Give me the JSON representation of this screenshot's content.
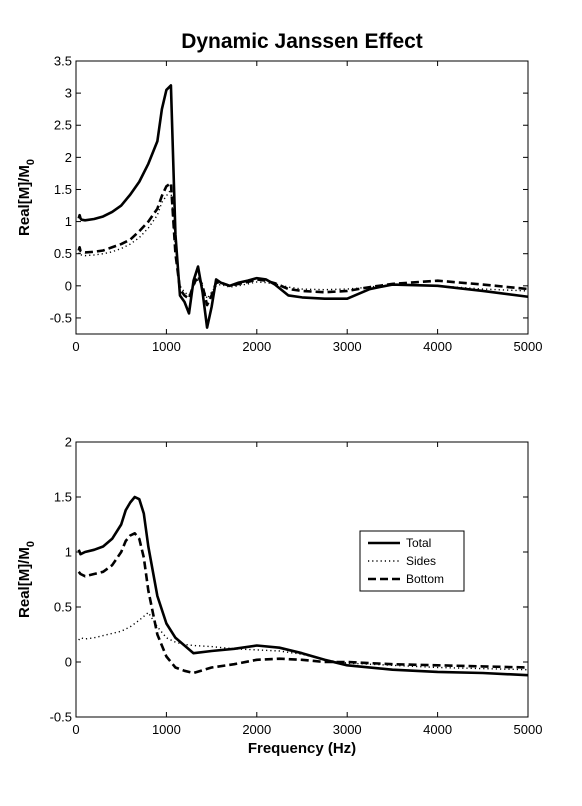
{
  "figure": {
    "title": "Dynamic Janssen Effect"
  },
  "chart_data": [
    {
      "type": "line",
      "ylabel": "Real[M]/M",
      "ylabel_subscript": "0",
      "xlabel": "",
      "xlim": [
        0,
        5000
      ],
      "ylim": [
        -0.75,
        3.5
      ],
      "xticks": [
        0,
        1000,
        2000,
        3000,
        4000,
        5000
      ],
      "yticks": [
        -0.5,
        0,
        0.5,
        1,
        1.5,
        2,
        2.5,
        3,
        3.5
      ],
      "grid": false,
      "legend": null,
      "series": [
        {
          "name": "Total",
          "style": "solid",
          "x": [
            30,
            40,
            50,
            60,
            100,
            200,
            300,
            400,
            500,
            600,
            700,
            800,
            900,
            950,
            1000,
            1050,
            1100,
            1150,
            1200,
            1250,
            1300,
            1350,
            1400,
            1450,
            1500,
            1550,
            1600,
            1700,
            1800,
            1900,
            2000,
            2100,
            2200,
            2350,
            2500,
            2750,
            3000,
            3250,
            3500,
            4000,
            4500,
            5000
          ],
          "y": [
            1.05,
            1.1,
            1.05,
            1.03,
            1.02,
            1.04,
            1.08,
            1.15,
            1.25,
            1.42,
            1.62,
            1.9,
            2.25,
            2.75,
            3.05,
            3.12,
            0.8,
            -0.15,
            -0.25,
            -0.43,
            0.08,
            0.3,
            -0.1,
            -0.65,
            -0.33,
            0.1,
            0.05,
            0.0,
            0.05,
            0.08,
            0.12,
            0.1,
            0.02,
            -0.15,
            -0.18,
            -0.2,
            -0.2,
            -0.05,
            0.02,
            0.0,
            -0.08,
            -0.17
          ]
        },
        {
          "name": "Sides",
          "style": "dotted",
          "x": [
            30,
            40,
            50,
            60,
            100,
            200,
            300,
            400,
            500,
            600,
            700,
            800,
            900,
            950,
            1000,
            1050,
            1100,
            1150,
            1200,
            1250,
            1300,
            1350,
            1400,
            1450,
            1500,
            1550,
            1600,
            1700,
            1800,
            1900,
            2000,
            2100,
            2200,
            2350,
            2500,
            2750,
            3000,
            3250,
            3500,
            4000,
            4500,
            5000
          ],
          "y": [
            0.5,
            0.52,
            0.49,
            0.48,
            0.47,
            0.48,
            0.5,
            0.53,
            0.58,
            0.65,
            0.75,
            0.9,
            1.1,
            1.3,
            1.4,
            1.5,
            0.6,
            0.0,
            -0.1,
            -0.15,
            0.0,
            0.1,
            0.0,
            -0.2,
            -0.1,
            0.0,
            0.02,
            -0.02,
            0.0,
            0.03,
            0.06,
            0.05,
            0.03,
            -0.02,
            -0.05,
            -0.06,
            -0.05,
            -0.02,
            0.02,
            0.0,
            -0.05,
            -0.08
          ]
        },
        {
          "name": "Bottom",
          "style": "dashed",
          "x": [
            30,
            40,
            50,
            60,
            100,
            200,
            300,
            400,
            500,
            600,
            700,
            800,
            900,
            950,
            1000,
            1050,
            1100,
            1150,
            1200,
            1250,
            1300,
            1350,
            1400,
            1450,
            1500,
            1550,
            1600,
            1700,
            1800,
            1900,
            2000,
            2100,
            2200,
            2350,
            2500,
            2750,
            3000,
            3250,
            3500,
            4000,
            4500,
            5000
          ],
          "y": [
            0.55,
            0.6,
            0.54,
            0.53,
            0.52,
            0.53,
            0.55,
            0.6,
            0.65,
            0.72,
            0.85,
            1.0,
            1.2,
            1.4,
            1.55,
            1.6,
            0.5,
            -0.05,
            -0.15,
            -0.2,
            0.02,
            0.15,
            0.0,
            -0.3,
            -0.15,
            0.05,
            0.05,
            0.0,
            0.03,
            0.06,
            0.1,
            0.08,
            0.04,
            -0.05,
            -0.08,
            -0.1,
            -0.08,
            -0.02,
            0.03,
            0.08,
            0.02,
            -0.05
          ]
        }
      ]
    },
    {
      "type": "line",
      "ylabel": "Real[M]/M",
      "ylabel_subscript": "0",
      "xlabel": "Frequency (Hz)",
      "xlim": [
        0,
        5000
      ],
      "ylim": [
        -0.5,
        2
      ],
      "xticks": [
        0,
        1000,
        2000,
        3000,
        4000,
        5000
      ],
      "yticks": [
        -0.5,
        0,
        0.5,
        1,
        1.5,
        2
      ],
      "grid": false,
      "legend": "right",
      "series": [
        {
          "name": "Total",
          "style": "solid",
          "x": [
            30,
            50,
            100,
            200,
            300,
            400,
            500,
            550,
            600,
            650,
            700,
            750,
            800,
            900,
            1000,
            1100,
            1200,
            1300,
            1500,
            1750,
            2000,
            2250,
            2500,
            2750,
            3000,
            3500,
            4000,
            4500,
            5000
          ],
          "y": [
            1.02,
            0.98,
            1.0,
            1.02,
            1.05,
            1.12,
            1.25,
            1.38,
            1.45,
            1.5,
            1.48,
            1.35,
            1.05,
            0.6,
            0.35,
            0.22,
            0.15,
            0.08,
            0.1,
            0.12,
            0.15,
            0.13,
            0.08,
            0.02,
            -0.03,
            -0.07,
            -0.09,
            -0.1,
            -0.12
          ]
        },
        {
          "name": "Sides",
          "style": "dotted",
          "x": [
            30,
            50,
            100,
            200,
            300,
            400,
            500,
            600,
            700,
            800,
            900,
            1000,
            1100,
            1200,
            1300,
            1500,
            1750,
            2000,
            2250,
            2500,
            2750,
            3000,
            3500,
            4000,
            4500,
            5000
          ],
          "y": [
            0.2,
            0.22,
            0.21,
            0.22,
            0.24,
            0.26,
            0.28,
            0.32,
            0.38,
            0.45,
            0.32,
            0.22,
            0.18,
            0.16,
            0.15,
            0.14,
            0.12,
            0.11,
            0.1,
            0.07,
            0.02,
            -0.01,
            -0.03,
            -0.05,
            -0.06,
            -0.07
          ]
        },
        {
          "name": "Bottom",
          "style": "dashed",
          "x": [
            30,
            50,
            100,
            200,
            300,
            400,
            500,
            550,
            600,
            650,
            700,
            750,
            800,
            900,
            1000,
            1100,
            1200,
            1300,
            1500,
            1750,
            2000,
            2250,
            2500,
            2750,
            3000,
            3500,
            4000,
            4500,
            5000
          ],
          "y": [
            0.82,
            0.8,
            0.78,
            0.8,
            0.82,
            0.88,
            1.0,
            1.1,
            1.15,
            1.17,
            1.12,
            0.95,
            0.65,
            0.25,
            0.05,
            -0.05,
            -0.08,
            -0.1,
            -0.05,
            -0.02,
            0.02,
            0.03,
            0.02,
            0.0,
            0.0,
            -0.02,
            -0.03,
            -0.04,
            -0.05
          ]
        }
      ]
    }
  ]
}
